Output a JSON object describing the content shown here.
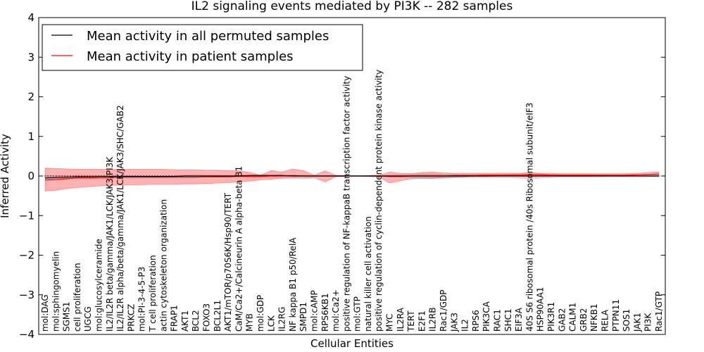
{
  "chart_data": {
    "type": "line",
    "title": "IL2 signaling events mediated by PI3K -- 282 samples",
    "xlabel": "Cellular Entities",
    "ylabel": "Inferred Activity",
    "ylim": [
      -4,
      4
    ],
    "yticks": [
      -4,
      -3,
      -2,
      -1,
      0,
      1,
      2,
      3,
      4
    ],
    "ytick_labels": [
      "−4",
      "−3",
      "−2",
      "−1",
      "0",
      "1",
      "2",
      "3",
      "4"
    ],
    "legend_position": "top-left",
    "categories": [
      "mol:DAG",
      "mol:sphingomyelin",
      "SGMS1",
      "cell proliferation",
      "UGCG",
      "mol:glucosylceramide",
      "IL2/IL2R beta/gamma/JAK1/LCK/JAK3/PI3K",
      "IL2/IL2R alpha/beta/gamma/JAK1/LCK/JAK3/SHC/GAB2",
      "PRKCZ",
      "mol:PI-3-4-5-P3",
      "T cell proliferation",
      "actin cytoskeleton organization",
      "FRAP1",
      "AKT1",
      "BCL2",
      "FOXO3",
      "BCL2L1",
      "AKT1/mTOR/p70S6K/Hsp90/TERT",
      "CaM/Ca2+/Calcineurin A alpha-beta B1",
      "MYB",
      "mol:GDP",
      "LCK",
      "IL2RG",
      "NF kappa B1 p50/RelA",
      "SMPD1",
      "mol:cAMP",
      "RPS6KB1",
      "mol:Ca2+",
      "positive regulation of NF-kappaB transcription factor activity",
      "mol:GTP",
      "natural killer cell activation",
      "positive regulation of cyclin-dependent protein kinase activity",
      "MYC",
      "IL2RA",
      "TERT",
      "E2F1",
      "IL2RB",
      "Rac1/GDP",
      "JAK3",
      "IL2",
      "RPS6",
      "PIK3CA",
      "RAC1",
      "SHC1",
      "EIF3A",
      "40S S6 ribosomal protein /40s Ribosomal subunit/eIF3",
      "HSP90AA1",
      "PIK3R1",
      "GAB2",
      "CALM1",
      "GRB2",
      "NFKB1",
      "RELA",
      "PTPN11",
      "SOS1",
      "JAK1",
      "PI3K",
      "Rac1/GTP"
    ],
    "series": [
      {
        "name": "Mean activity in all permuted samples",
        "color": "#000000",
        "values": [
          -0.05,
          -0.04,
          -0.03,
          -0.02,
          -0.02,
          -0.01,
          -0.01,
          -0.01,
          -0.01,
          -0.01,
          -0.01,
          -0.01,
          -0.01,
          0,
          0,
          0,
          0,
          0,
          0,
          0.01,
          0.01,
          0.01,
          0.01,
          0,
          0,
          0,
          0,
          0,
          0,
          0,
          0,
          0,
          0,
          0,
          0,
          0,
          0,
          0,
          0,
          0,
          0,
          0,
          0,
          0,
          0,
          0,
          0,
          0,
          0,
          0,
          0,
          0,
          0,
          0,
          0,
          0,
          0,
          0
        ]
      },
      {
        "name": "Mean activity in patient samples",
        "color": "#ff0000",
        "values": [
          -0.1,
          -0.09,
          -0.07,
          -0.05,
          -0.05,
          -0.04,
          -0.04,
          -0.03,
          -0.03,
          -0.03,
          -0.03,
          -0.03,
          -0.03,
          -0.03,
          -0.03,
          -0.02,
          -0.02,
          -0.02,
          -0.01,
          -0.01,
          -0.01,
          0,
          0,
          0.01,
          0,
          0,
          0,
          0,
          0,
          0,
          0,
          0,
          -0.01,
          -0.01,
          0,
          0,
          0,
          0,
          0.01,
          0.01,
          0.01,
          0.02,
          0.02,
          0.02,
          0.02,
          0.03,
          0.03,
          0.02,
          0.02,
          0.02,
          0.02,
          0.02,
          0.02,
          0.02,
          0.02,
          0.03,
          0.04,
          0.05
        ]
      }
    ],
    "patient_band": {
      "name": "Patient samples spread",
      "color": "#ff0000",
      "lower": [
        -0.38,
        -0.36,
        -0.32,
        -0.29,
        -0.27,
        -0.25,
        -0.24,
        -0.23,
        -0.22,
        -0.22,
        -0.21,
        -0.21,
        -0.21,
        -0.2,
        -0.2,
        -0.19,
        -0.18,
        -0.17,
        -0.15,
        -0.13,
        -0.1,
        -0.08,
        -0.06,
        -0.05,
        -0.06,
        -0.04,
        -0.15,
        -0.02,
        -0.01,
        0,
        -0.01,
        -0.02,
        -0.18,
        -0.12,
        -0.07,
        -0.06,
        -0.06,
        -0.04,
        -0.03,
        -0.02,
        -0.01,
        -0.01,
        0,
        0,
        0,
        -0.01,
        0,
        0,
        0,
        0,
        0,
        0,
        0,
        0,
        0,
        0,
        0,
        0
      ],
      "upper": [
        0.2,
        0.19,
        0.18,
        0.17,
        0.17,
        0.17,
        0.17,
        0.17,
        0.17,
        0.17,
        0.17,
        0.17,
        0.16,
        0.16,
        0.16,
        0.15,
        0.15,
        0.14,
        0.13,
        0.09,
        0.02,
        0.14,
        0.1,
        0.18,
        0.14,
        0.02,
        0.13,
        0.02,
        0.01,
        0,
        0.01,
        0.02,
        0.1,
        0.07,
        0.06,
        0.09,
        0.1,
        0.08,
        0.07,
        0.07,
        0.07,
        0.07,
        0.07,
        0.07,
        0.07,
        0.09,
        0.07,
        0.07,
        0.06,
        0.06,
        0.06,
        0.06,
        0.06,
        0.06,
        0.06,
        0.07,
        0.09,
        0.1
      ]
    },
    "permuted_band": {
      "name": "Permuted samples spread",
      "color": "#b0b0b0",
      "lower": [
        -0.08,
        -0.07,
        -0.06,
        -0.05,
        -0.05,
        -0.04,
        -0.04,
        -0.04,
        -0.04,
        -0.04,
        -0.04,
        -0.04,
        -0.03,
        -0.03,
        -0.03,
        -0.03,
        -0.03,
        -0.03,
        -0.02,
        -0.02,
        -0.02,
        -0.02,
        -0.02,
        -0.02,
        -0.02,
        -0.02,
        -0.02,
        -0.02,
        -0.02,
        -0.02,
        -0.02,
        -0.02,
        -0.03,
        -0.04,
        -0.05,
        -0.06,
        -0.07,
        -0.06,
        -0.05,
        -0.05,
        -0.05,
        -0.05,
        -0.05,
        -0.05,
        -0.06,
        -0.08,
        -0.06,
        -0.05,
        -0.04,
        -0.04,
        -0.04,
        -0.04,
        -0.03,
        -0.03,
        -0.03,
        -0.03,
        -0.03,
        -0.03
      ],
      "upper": [
        0.02,
        0.02,
        0.02,
        0.02,
        0.02,
        0.02,
        0.02,
        0.02,
        0.02,
        0.02,
        0.02,
        0.02,
        0.02,
        0.03,
        0.03,
        0.03,
        0.03,
        0.03,
        0.03,
        0.04,
        0.04,
        0.04,
        0.04,
        0.03,
        0.03,
        0.02,
        0.02,
        0.02,
        0.02,
        0.02,
        0.02,
        0.02,
        0.03,
        0.04,
        0.05,
        0.06,
        0.06,
        0.05,
        0.05,
        0.05,
        0.05,
        0.05,
        0.05,
        0.05,
        0.06,
        0.07,
        0.06,
        0.05,
        0.04,
        0.04,
        0.04,
        0.04,
        0.03,
        0.03,
        0.03,
        0.03,
        0.03,
        0.03
      ]
    }
  }
}
